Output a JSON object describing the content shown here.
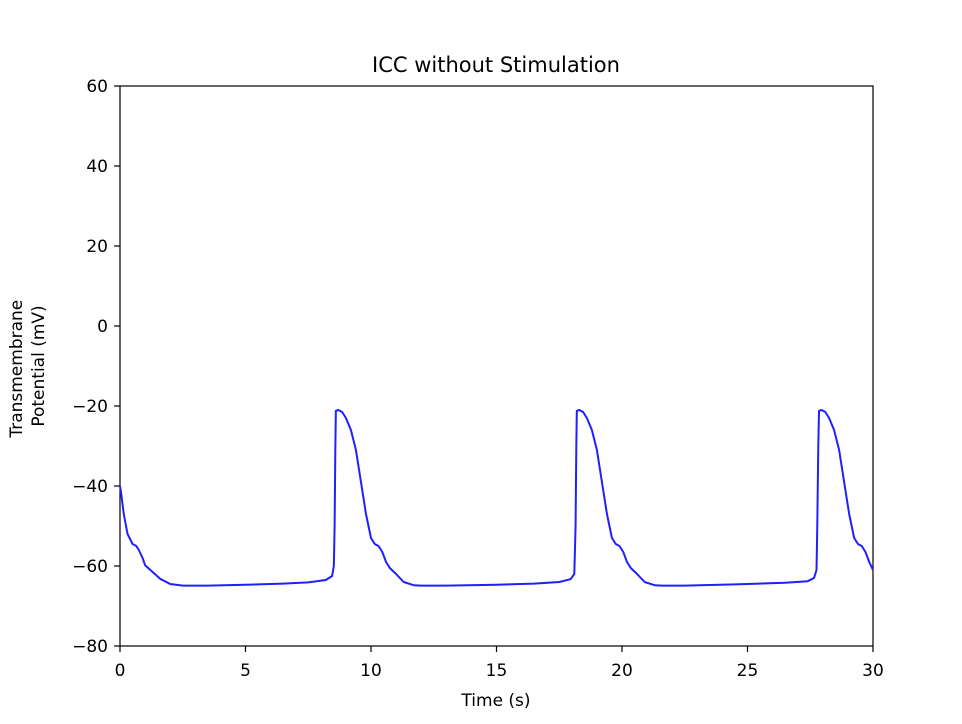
{
  "chart_data": {
    "type": "line",
    "title": "ICC without Stimulation",
    "xlabel": "Time (s)",
    "ylabel_lines": [
      "Transmembrane",
      "Potential (mV)"
    ],
    "xlim": [
      0,
      30
    ],
    "ylim": [
      -80,
      60
    ],
    "xticks": [
      0,
      5,
      10,
      15,
      20,
      25,
      30
    ],
    "yticks": [
      -80,
      -60,
      -40,
      -20,
      0,
      20,
      40,
      60
    ],
    "grid": false,
    "colors": {
      "line": "#1f1fff",
      "axes": "#000000"
    },
    "series": [
      {
        "x": [
          0,
          0.05,
          0.15,
          0.3,
          0.5,
          0.65,
          0.75,
          0.9,
          1.0,
          1.3,
          1.6,
          2.0,
          2.5,
          3.5,
          5,
          6.5,
          7.5,
          8.2,
          8.45,
          8.52,
          8.55,
          8.58,
          8.6,
          8.7,
          8.85,
          9.0,
          9.2,
          9.4,
          9.6,
          9.8,
          10.0,
          10.15,
          10.3,
          10.45,
          10.6,
          10.75,
          11.0,
          11.3,
          11.7,
          12.0,
          13,
          15,
          16.5,
          17.5,
          17.95,
          18.1,
          18.15,
          18.18,
          18.2,
          18.3,
          18.45,
          18.6,
          18.8,
          19.0,
          19.2,
          19.4,
          19.6,
          19.75,
          19.9,
          20.05,
          20.2,
          20.35,
          20.6,
          20.9,
          21.3,
          21.6,
          22.5,
          24.5,
          26.5,
          27.4,
          27.65,
          27.75,
          27.78,
          27.82,
          27.85,
          27.95,
          28.1,
          28.25,
          28.45,
          28.65,
          28.85,
          29.05,
          29.25,
          29.4,
          29.55,
          29.7,
          29.85,
          30
        ],
        "y": [
          -40,
          -42,
          -47,
          -52,
          -54.5,
          -55,
          -56,
          -58,
          -59.8,
          -61.5,
          -63.2,
          -64.5,
          -64.9,
          -64.9,
          -64.7,
          -64.4,
          -64.1,
          -63.5,
          -62.5,
          -60,
          -50,
          -30,
          -21.2,
          -21,
          -21.5,
          -23,
          -26,
          -31,
          -39,
          -47,
          -53,
          -54.5,
          -55,
          -56.5,
          -59,
          -60.5,
          -62,
          -64,
          -64.8,
          -64.9,
          -64.9,
          -64.7,
          -64.4,
          -64.0,
          -63.3,
          -62,
          -50,
          -30,
          -21.2,
          -21,
          -21.5,
          -23,
          -26,
          -31,
          -39,
          -47,
          -53,
          -54.5,
          -55,
          -56.5,
          -59,
          -60.5,
          -62,
          -64,
          -64.8,
          -64.9,
          -64.9,
          -64.6,
          -64.2,
          -63.8,
          -63,
          -61,
          -50,
          -30,
          -21.2,
          -21,
          -21.5,
          -23,
          -26,
          -31,
          -39,
          -47,
          -53,
          -54.5,
          -55,
          -56.5,
          -59,
          -61
        ]
      }
    ]
  }
}
